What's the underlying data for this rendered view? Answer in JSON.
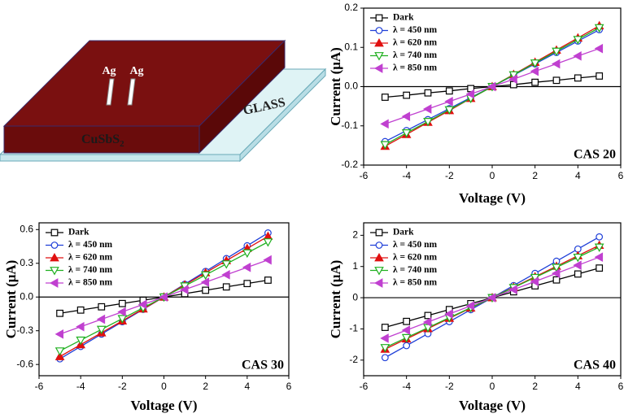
{
  "diagram": {
    "electrode_labels": [
      "Ag",
      "Ag"
    ],
    "film_label": "CuSbS",
    "film_subscript": "2",
    "substrate_label": "GLASS"
  },
  "chart_data": [
    {
      "type": "line",
      "annotation": "CAS 20",
      "xlabel": "Voltage (V)",
      "ylabel": "Current (μA)",
      "x": [
        -5,
        -4,
        -3,
        -2,
        -1,
        0,
        1,
        2,
        3,
        4,
        5
      ],
      "xlim": [
        -6,
        6
      ],
      "xticks": [
        -6,
        -4,
        -2,
        0,
        2,
        4,
        6
      ],
      "ylim": [
        -0.2,
        0.2
      ],
      "yticks": [
        -0.2,
        -0.1,
        {
          "value": 0,
          "label": "0.0"
        },
        0.1,
        0.2
      ],
      "zero_line": true,
      "legend": "upper left",
      "series": [
        {
          "name": "Dark",
          "color": "#000000",
          "marker": "square",
          "filled": false,
          "values": [
            -0.027,
            -0.022,
            -0.016,
            -0.011,
            -0.005,
            0,
            0.005,
            0.011,
            0.016,
            0.022,
            0.027
          ]
        },
        {
          "name": "λ = 450 nm",
          "color": "#1f3fd8",
          "marker": "circle",
          "filled": false,
          "values": [
            -0.14,
            -0.112,
            -0.084,
            -0.056,
            -0.028,
            0,
            0.029,
            0.058,
            0.087,
            0.116,
            0.145
          ]
        },
        {
          "name": "λ = 620 nm",
          "color": "#e01010",
          "marker": "triangle-up",
          "filled": true,
          "values": [
            -0.152,
            -0.122,
            -0.091,
            -0.061,
            -0.03,
            0,
            0.031,
            0.062,
            0.093,
            0.124,
            0.155
          ]
        },
        {
          "name": "λ = 740 nm",
          "color": "#20b020",
          "marker": "triangle-down",
          "filled": false,
          "values": [
            -0.148,
            -0.118,
            -0.089,
            -0.059,
            -0.03,
            0,
            0.03,
            0.06,
            0.09,
            0.12,
            0.15
          ]
        },
        {
          "name": "λ = 850 nm",
          "color": "#c040d0",
          "marker": "triangle-left",
          "filled": true,
          "values": [
            -0.095,
            -0.076,
            -0.057,
            -0.038,
            -0.019,
            0,
            0.019,
            0.039,
            0.058,
            0.078,
            0.097
          ]
        }
      ]
    },
    {
      "type": "line",
      "annotation": "CAS 30",
      "xlabel": "Voltage (V)",
      "ylabel": "Current (μA)",
      "x": [
        -5,
        -4,
        -3,
        -2,
        -1,
        0,
        1,
        2,
        3,
        4,
        5
      ],
      "xlim": [
        -6,
        6
      ],
      "xticks": [
        -6,
        -4,
        -2,
        0,
        2,
        4,
        6
      ],
      "ylim": [
        -0.7,
        0.66
      ],
      "yticks": [
        -0.6,
        -0.3,
        {
          "value": 0,
          "label": "0.0"
        },
        0.3,
        0.6
      ],
      "zero_line": true,
      "legend": "upper left",
      "series": [
        {
          "name": "Dark",
          "color": "#000000",
          "marker": "square",
          "filled": false,
          "values": [
            -0.145,
            -0.116,
            -0.087,
            -0.058,
            -0.029,
            0,
            0.03,
            0.06,
            0.09,
            0.12,
            0.15
          ]
        },
        {
          "name": "λ = 450 nm",
          "color": "#1f3fd8",
          "marker": "circle",
          "filled": false,
          "values": [
            -0.55,
            -0.44,
            -0.33,
            -0.22,
            -0.11,
            0,
            0.114,
            0.228,
            0.342,
            0.456,
            0.57
          ]
        },
        {
          "name": "λ = 620 nm",
          "color": "#e01010",
          "marker": "triangle-up",
          "filled": true,
          "values": [
            -0.53,
            -0.424,
            -0.318,
            -0.212,
            -0.106,
            0,
            0.108,
            0.216,
            0.324,
            0.432,
            0.54
          ]
        },
        {
          "name": "λ = 740 nm",
          "color": "#20b020",
          "marker": "triangle-down",
          "filled": false,
          "values": [
            -0.48,
            -0.384,
            -0.288,
            -0.192,
            -0.096,
            0,
            0.098,
            0.196,
            0.294,
            0.392,
            0.49
          ]
        },
        {
          "name": "λ = 850 nm",
          "color": "#c040d0",
          "marker": "triangle-left",
          "filled": true,
          "values": [
            -0.33,
            -0.264,
            -0.198,
            -0.132,
            -0.066,
            0,
            0.066,
            0.132,
            0.198,
            0.264,
            0.33
          ]
        }
      ]
    },
    {
      "type": "line",
      "annotation": "CAS 40",
      "xlabel": "Voltage (V)",
      "ylabel": "Current (μA)",
      "x": [
        -5,
        -4,
        -3,
        -2,
        -1,
        0,
        1,
        2,
        3,
        4,
        5
      ],
      "xlim": [
        -6,
        6
      ],
      "xticks": [
        -6,
        -4,
        -2,
        0,
        2,
        4,
        6
      ],
      "ylim": [
        -2.5,
        2.4
      ],
      "yticks": [
        -2,
        -1,
        0,
        1,
        2
      ],
      "zero_line": true,
      "legend": "upper left",
      "series": [
        {
          "name": "Dark",
          "color": "#000000",
          "marker": "square",
          "filled": false,
          "values": [
            -0.95,
            -0.76,
            -0.57,
            -0.38,
            -0.19,
            0,
            0.19,
            0.38,
            0.57,
            0.76,
            0.95
          ]
        },
        {
          "name": "λ = 450 nm",
          "color": "#1f3fd8",
          "marker": "circle",
          "filled": false,
          "values": [
            -1.92,
            -1.536,
            -1.152,
            -0.768,
            -0.384,
            0,
            0.39,
            0.78,
            1.17,
            1.56,
            1.95
          ]
        },
        {
          "name": "λ = 620 nm",
          "color": "#e01010",
          "marker": "triangle-up",
          "filled": true,
          "values": [
            -1.65,
            -1.32,
            -0.99,
            -0.66,
            -0.33,
            0,
            0.336,
            0.672,
            1.008,
            1.344,
            1.68
          ]
        },
        {
          "name": "λ = 740 nm",
          "color": "#20b020",
          "marker": "triangle-down",
          "filled": false,
          "values": [
            -1.6,
            -1.28,
            -0.96,
            -0.64,
            -0.32,
            0,
            0.324,
            0.648,
            0.972,
            1.296,
            1.62
          ]
        },
        {
          "name": "λ = 850 nm",
          "color": "#c040d0",
          "marker": "triangle-left",
          "filled": true,
          "values": [
            -1.3,
            -1.04,
            -0.78,
            -0.52,
            -0.26,
            0,
            0.26,
            0.52,
            0.78,
            1.04,
            1.3
          ]
        }
      ]
    }
  ]
}
